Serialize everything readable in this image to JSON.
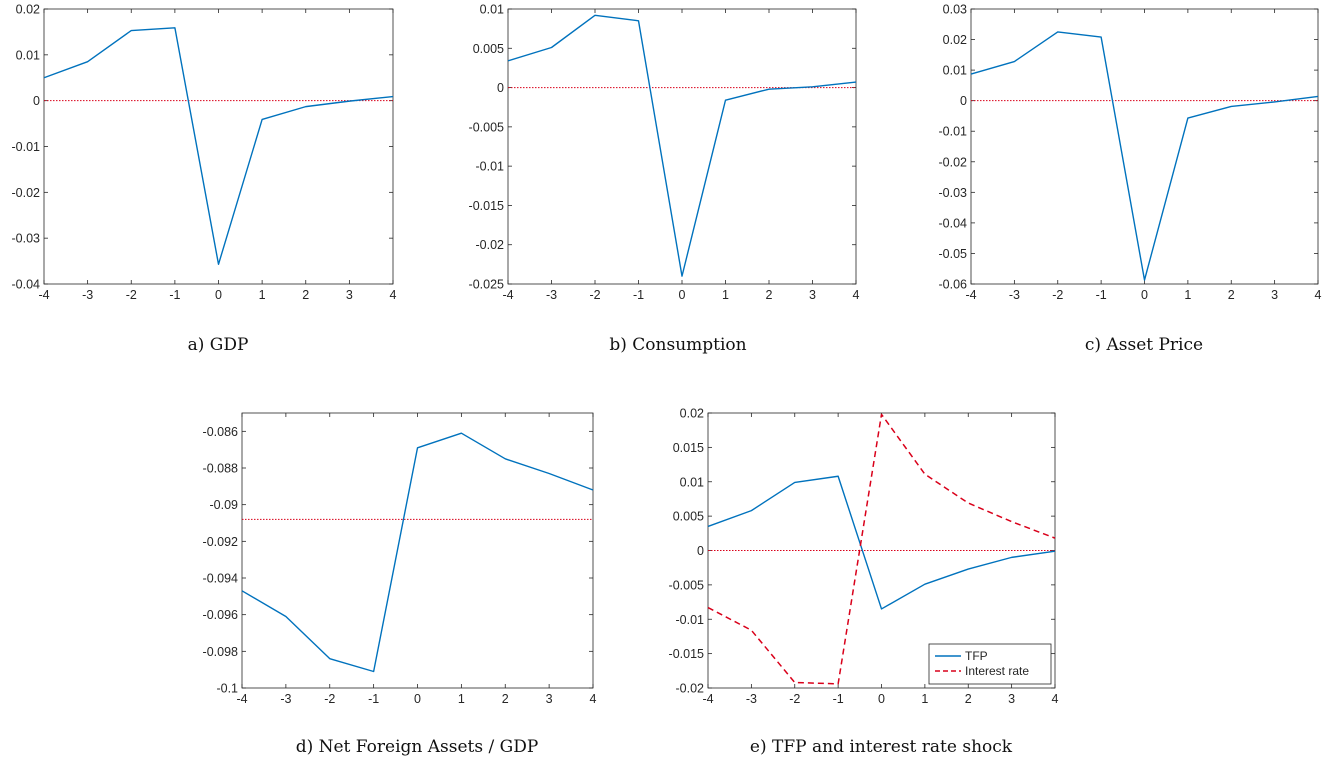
{
  "colors": {
    "series_blue": "#0072BD",
    "reference_red": "#D9001A",
    "axis": "#262626"
  },
  "chart_data": [
    {
      "id": "gdp",
      "type": "line",
      "caption": "a) GDP",
      "title": "",
      "xlabel": "",
      "ylabel": "",
      "x": [
        -4,
        -3,
        -2,
        -1,
        0,
        1,
        2,
        3,
        4
      ],
      "xlim": [
        -4,
        4
      ],
      "xticks": [
        "-4",
        "-3",
        "-2",
        "-1",
        "0",
        "1",
        "2",
        "3",
        "4"
      ],
      "ylim": [
        -0.04,
        0.02
      ],
      "ytick_values": [
        -0.04,
        -0.03,
        -0.02,
        -0.01,
        0,
        0.01,
        0.02
      ],
      "yticks": [
        "-0.04",
        "-0.03",
        "-0.02",
        "-0.01",
        "0",
        "0.01",
        "0.02"
      ],
      "series": [
        {
          "values": [
            0.005,
            0.0085,
            0.0153,
            0.0159,
            -0.0357,
            -0.0041,
            -0.0013,
            -0.0001,
            0.0009
          ],
          "style": "solid",
          "color": "#0072BD"
        }
      ],
      "reference_line": {
        "y": 0,
        "style": "dotted",
        "color": "#D9001A"
      }
    },
    {
      "id": "consumption",
      "type": "line",
      "caption": "b) Consumption",
      "title": "",
      "xlabel": "",
      "ylabel": "",
      "x": [
        -4,
        -3,
        -2,
        -1,
        0,
        1,
        2,
        3,
        4
      ],
      "xlim": [
        -4,
        4
      ],
      "xticks": [
        "-4",
        "-3",
        "-2",
        "-1",
        "0",
        "1",
        "2",
        "3",
        "4"
      ],
      "ylim": [
        -0.025,
        0.01
      ],
      "ytick_values": [
        -0.025,
        -0.02,
        -0.015,
        -0.01,
        -0.005,
        0,
        0.005,
        0.01
      ],
      "yticks": [
        "-0.025",
        "-0.02",
        "-0.015",
        "-0.01",
        "-0.005",
        "0",
        "0.005",
        "0.01"
      ],
      "series": [
        {
          "values": [
            0.0034,
            0.0051,
            0.0092,
            0.0085,
            -0.024,
            -0.0016,
            -0.0002,
            0.0001,
            0.0007
          ],
          "style": "solid",
          "color": "#0072BD"
        }
      ],
      "reference_line": {
        "y": 0,
        "style": "dotted",
        "color": "#D9001A"
      }
    },
    {
      "id": "asset_price",
      "type": "line",
      "caption": "c) Asset Price",
      "title": "",
      "xlabel": "",
      "ylabel": "",
      "x": [
        -4,
        -3,
        -2,
        -1,
        0,
        1,
        2,
        3,
        4
      ],
      "xlim": [
        -4,
        4
      ],
      "xticks": [
        "-4",
        "-3",
        "-2",
        "-1",
        "0",
        "1",
        "2",
        "3",
        "4"
      ],
      "ylim": [
        -0.06,
        0.03
      ],
      "ytick_values": [
        -0.06,
        -0.05,
        -0.04,
        -0.03,
        -0.02,
        -0.01,
        0,
        0.01,
        0.02,
        0.03
      ],
      "yticks": [
        "-0.06",
        "-0.05",
        "-0.04",
        "-0.03",
        "-0.02",
        "-0.01",
        "0",
        "0.01",
        "0.02",
        "0.03"
      ],
      "series": [
        {
          "values": [
            0.0087,
            0.0128,
            0.0225,
            0.0208,
            -0.0587,
            -0.0057,
            -0.0019,
            -0.0004,
            0.0014
          ],
          "style": "solid",
          "color": "#0072BD"
        }
      ],
      "reference_line": {
        "y": 0,
        "style": "dotted",
        "color": "#D9001A"
      }
    },
    {
      "id": "nfa_gdp",
      "type": "line",
      "caption": "d) Net Foreign Assets / GDP",
      "title": "",
      "xlabel": "",
      "ylabel": "",
      "x": [
        -4,
        -3,
        -2,
        -1,
        0,
        1,
        2,
        3,
        4
      ],
      "xlim": [
        -4,
        4
      ],
      "xticks": [
        "-4",
        "-3",
        "-2",
        "-1",
        "0",
        "1",
        "2",
        "3",
        "4"
      ],
      "ylim": [
        -0.1,
        -0.085
      ],
      "ytick_values": [
        -0.1,
        -0.098,
        -0.096,
        -0.094,
        -0.092,
        -0.09,
        -0.088,
        -0.086
      ],
      "yticks": [
        "-0.1",
        "-0.098",
        "-0.096",
        "-0.094",
        "-0.092",
        "-0.09",
        "-0.088",
        "-0.086"
      ],
      "series": [
        {
          "values": [
            -0.0947,
            -0.0961,
            -0.0984,
            -0.0991,
            -0.0869,
            -0.0861,
            -0.0875,
            -0.0883,
            -0.0892
          ],
          "style": "solid",
          "color": "#0072BD"
        }
      ],
      "reference_line": {
        "y": -0.0908,
        "style": "dotted",
        "color": "#D9001A"
      }
    },
    {
      "id": "tfp_interest",
      "type": "line",
      "caption": "e) TFP and interest rate shock",
      "title": "",
      "xlabel": "",
      "ylabel": "",
      "x": [
        -4,
        -3,
        -2,
        -1,
        0,
        1,
        2,
        3,
        4
      ],
      "xlim": [
        -4,
        4
      ],
      "xticks": [
        "-4",
        "-3",
        "-2",
        "-1",
        "0",
        "1",
        "2",
        "3",
        "4"
      ],
      "ylim": [
        -0.02,
        0.02
      ],
      "ytick_values": [
        -0.02,
        -0.015,
        -0.01,
        -0.005,
        0,
        0.005,
        0.01,
        0.015,
        0.02
      ],
      "yticks": [
        "-0.02",
        "-0.015",
        "-0.01",
        "-0.005",
        "0",
        "0.005",
        "0.01",
        "0.015",
        "0.02"
      ],
      "series": [
        {
          "name": "TFP",
          "values": [
            0.0035,
            0.0058,
            0.0099,
            0.0108,
            -0.0085,
            -0.0049,
            -0.0027,
            -0.001,
            -0.0001
          ],
          "style": "solid",
          "color": "#0072BD"
        },
        {
          "name": "Interest rate",
          "values": [
            -0.0083,
            -0.0116,
            -0.0192,
            -0.0194,
            0.0198,
            0.0111,
            0.0069,
            0.0042,
            0.0018
          ],
          "style": "dashed",
          "color": "#D9001A"
        }
      ],
      "reference_line": {
        "y": 0,
        "style": "dotted",
        "color": "#D9001A"
      },
      "legend": {
        "position": "bottom-right"
      }
    }
  ]
}
